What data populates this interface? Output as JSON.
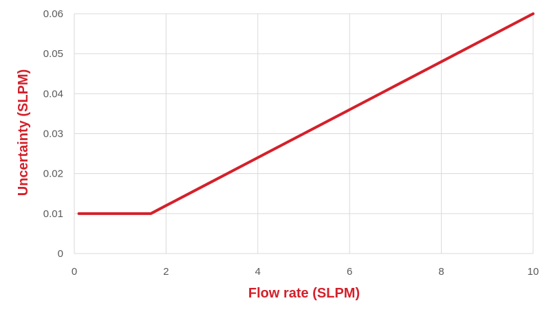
{
  "chart_data": {
    "type": "line",
    "xlabel": "Flow rate (SLPM)",
    "ylabel": "Uncertainty (SLPM)",
    "xlim": [
      0,
      10
    ],
    "ylim": [
      0,
      0.06
    ],
    "x_ticks": [
      "0",
      "2",
      "4",
      "6",
      "8",
      "10"
    ],
    "y_ticks": [
      "0",
      "0.01",
      "0.02",
      "0.03",
      "0.04",
      "0.05",
      "0.06"
    ],
    "grid": true,
    "series": [
      {
        "color": "#d4202a",
        "x": [
          0.1,
          1.0,
          1.67,
          2.0,
          3.0,
          4.0,
          5.0,
          6.0,
          7.0,
          8.0,
          9.0,
          10.0
        ],
        "y": [
          0.01,
          0.01,
          0.01,
          0.012,
          0.018,
          0.024,
          0.03,
          0.036,
          0.042,
          0.048,
          0.054,
          0.06
        ]
      }
    ]
  }
}
